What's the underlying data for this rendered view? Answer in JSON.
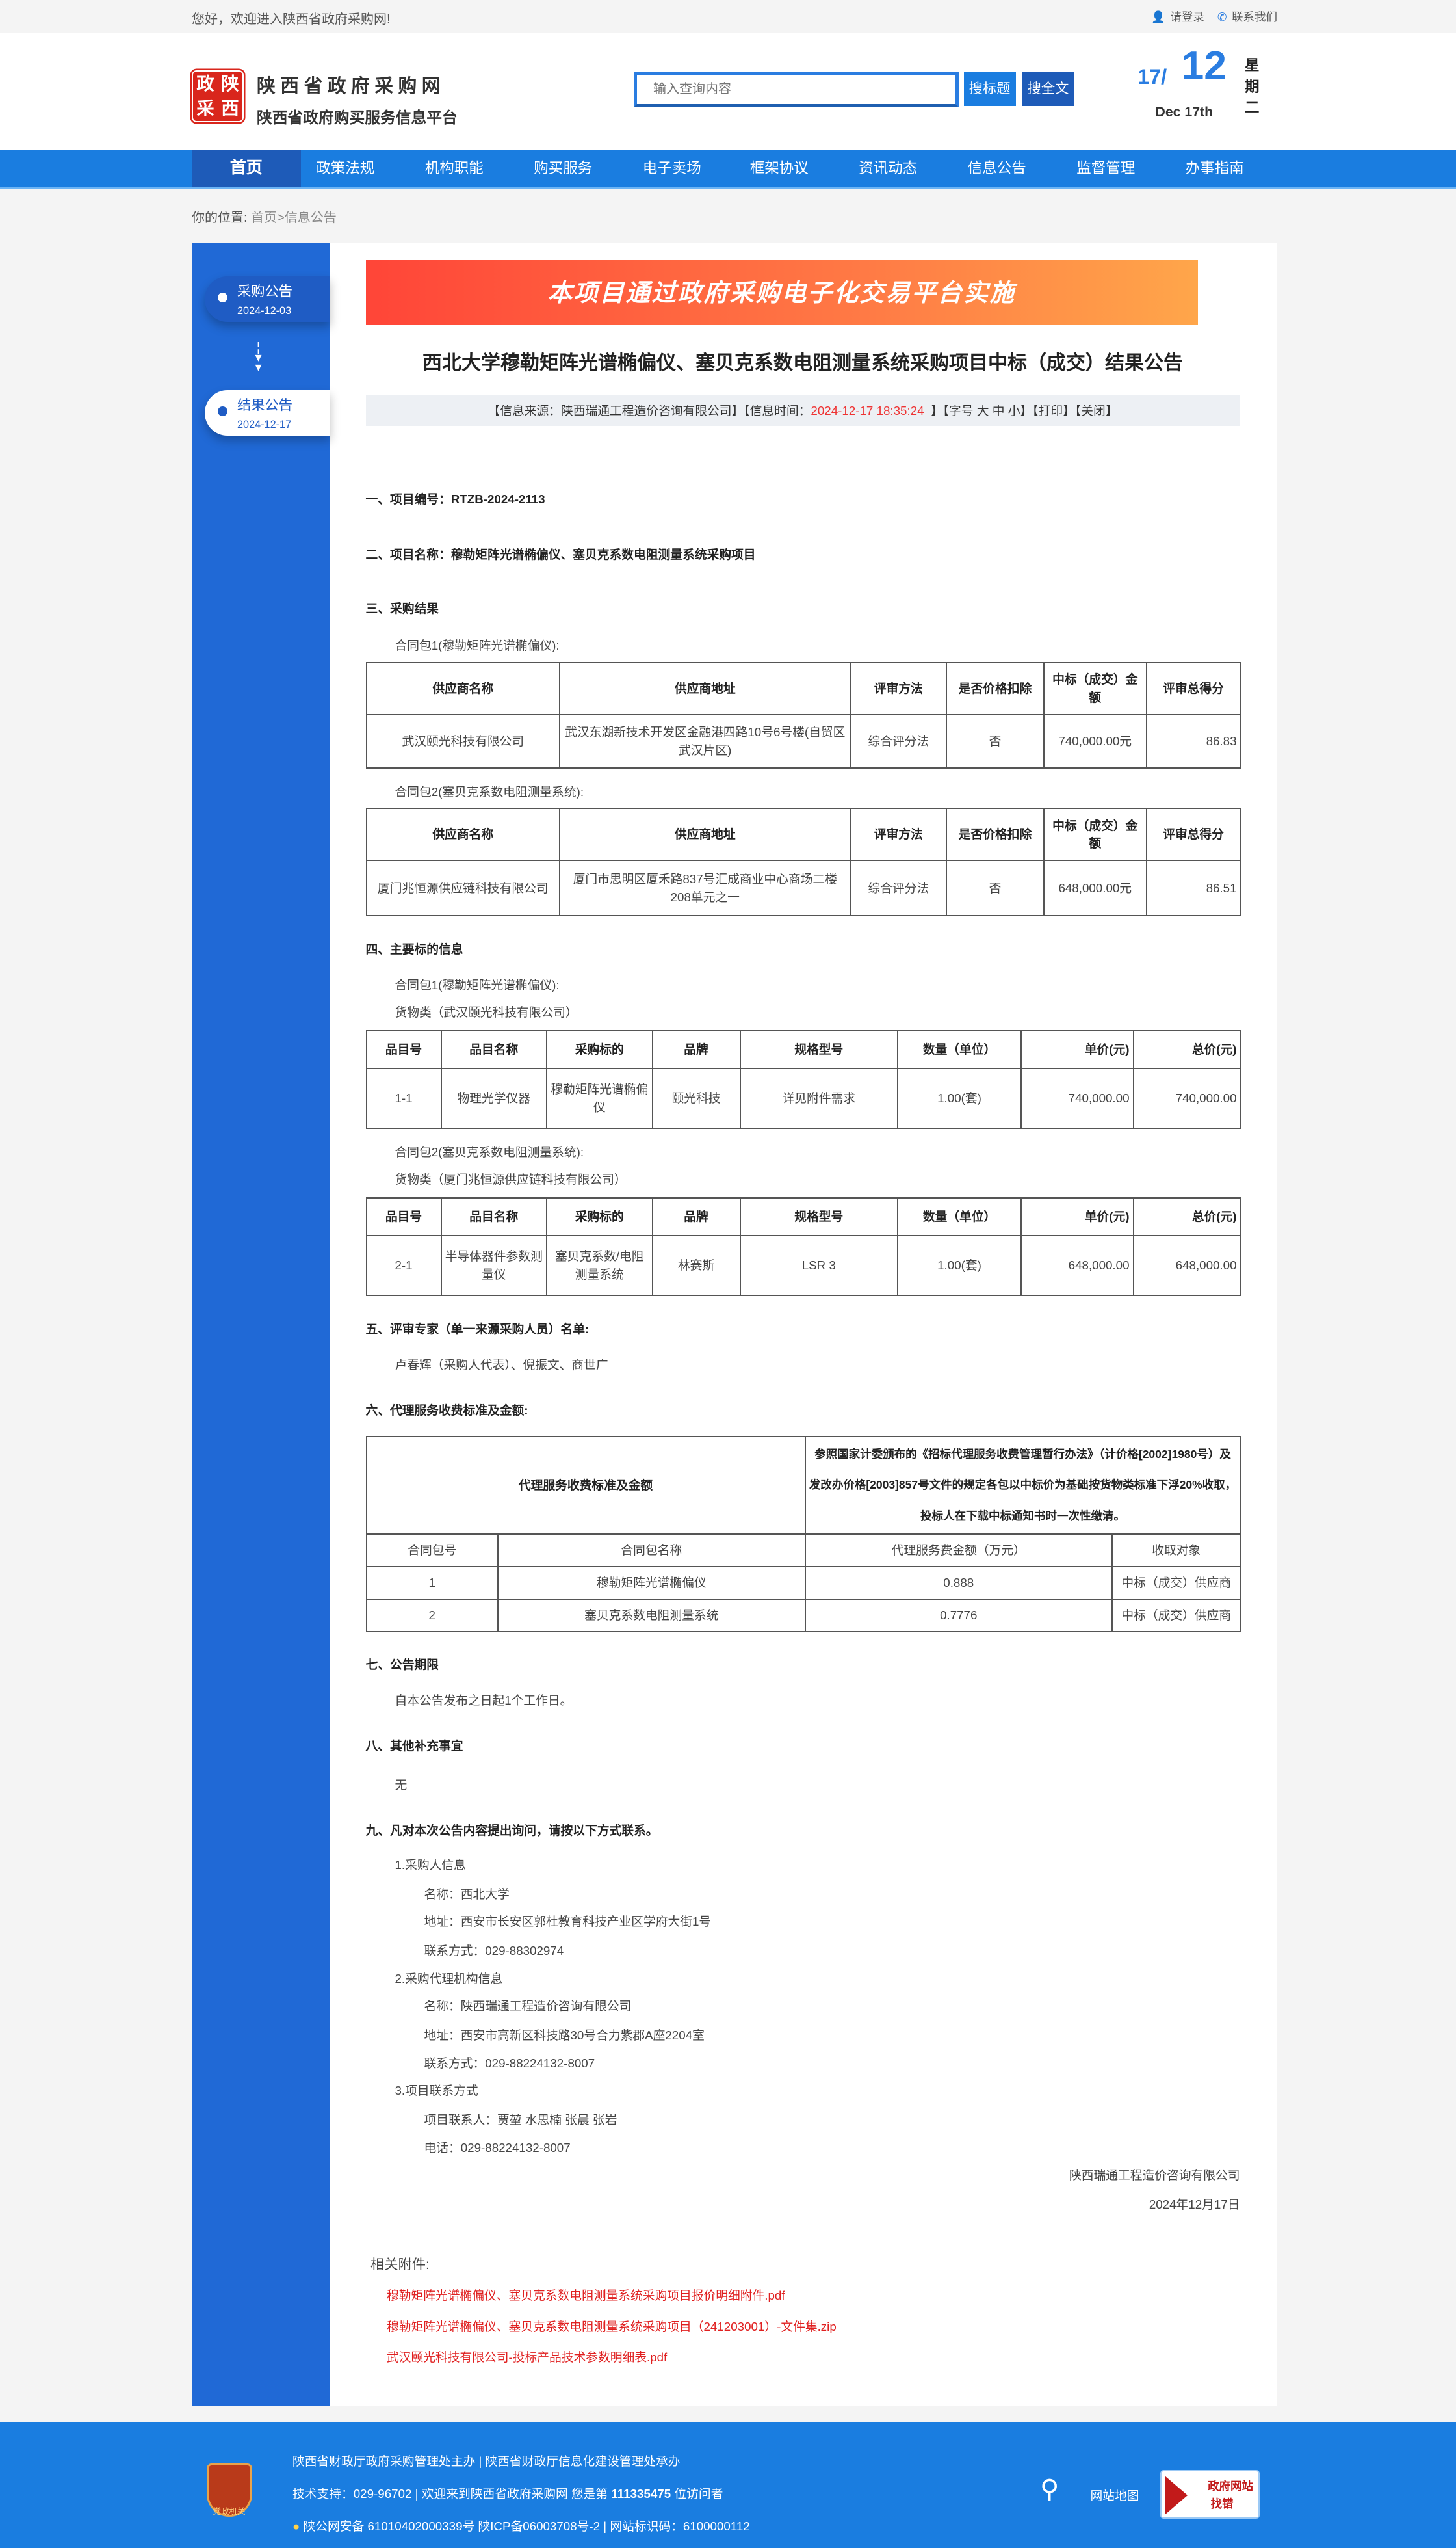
{
  "topbar": {
    "welcome": "您好，欢迎进入陕西省政府采购网!",
    "login": "请登录",
    "contact": "联系我们"
  },
  "header": {
    "logo_chars": [
      "政",
      "陕",
      "采",
      "西"
    ],
    "site_name": "陕西省政府采购网",
    "site_sub": "陕西省政府购买服务信息平台",
    "search_placeholder": "输入查询内容",
    "btn_title": "搜标题",
    "btn_full": "搜全文",
    "date_day": "17/",
    "date_month": "12",
    "date_en": "Dec 17th",
    "weekday": "星期二"
  },
  "nav": [
    "首页",
    "政策法规",
    "机构职能",
    "购买服务",
    "电子卖场",
    "框架协议",
    "资讯动态",
    "信息公告",
    "监督管理",
    "办事指南"
  ],
  "breadcrumb": {
    "label": "你的位置:",
    "home": "首页",
    "current": ">信息公告"
  },
  "sidebar": [
    {
      "label": "采购公告",
      "date": "2024-12-03"
    },
    {
      "label": "结果公告",
      "date": "2024-12-17"
    }
  ],
  "banner": "本项目通过政府采购电子化交易平台实施",
  "title": "西北大学穆勒矩阵光谱椭偏仪、塞贝克系数电阻测量系统采购项目中标（成交）结果公告",
  "info": {
    "source": "【信息来源：陕西瑞通工程造价咨询有限公司】【信息时间：",
    "time": "2024-12-17 18:35:24",
    "tail": "】【字号 大 中 小】【打印】【关闭】"
  },
  "s1": "一、项目编号：RTZB-2024-2113",
  "s2": "二、项目名称：穆勒矩阵光谱椭偏仪、塞贝克系数电阻测量系统采购项目",
  "s3": "三、采购结果",
  "pkg1": "合同包1(穆勒矩阵光谱椭偏仪):",
  "pkg2": "合同包2(塞贝克系数电阻测量系统):",
  "result_headers": [
    "供应商名称",
    "供应商地址",
    "评审方法",
    "是否价格扣除",
    "中标（成交）金额",
    "评审总得分"
  ],
  "result1": [
    "武汉颐光科技有限公司",
    "武汉东湖新技术开发区金融港四路10号6号楼(自贸区武汉片区)",
    "综合评分法",
    "否",
    "740,000.00元",
    "86.83"
  ],
  "result2": [
    "厦门兆恒源供应链科技有限公司",
    "厦门市思明区厦禾路837号汇成商业中心商场二楼208单元之一",
    "综合评分法",
    "否",
    "648,000.00元",
    "86.51"
  ],
  "s4": "四、主要标的信息",
  "goods1": "货物类（武汉颐光科技有限公司）",
  "goods2": "货物类（厦门兆恒源供应链科技有限公司）",
  "item_headers": [
    "品目号",
    "品目名称",
    "采购标的",
    "品牌",
    "规格型号",
    "数量（单位）",
    "单价(元)",
    "总价(元)"
  ],
  "item1": [
    "1-1",
    "物理光学仪器",
    "穆勒矩阵光谱椭偏仪",
    "颐光科技",
    "详见附件需求",
    "1.00(套)",
    "740,000.00",
    "740,000.00"
  ],
  "item2": [
    "2-1",
    "半导体器件参数测量仪",
    "塞贝克系数/电阻测量系统",
    "林赛斯",
    "LSR 3",
    "1.00(套)",
    "648,000.00",
    "648,000.00"
  ],
  "s5": "五、评审专家（单一来源采购人员）名单:",
  "experts": "卢春辉（采购人代表）、倪振文、商世广",
  "s6": "六、代理服务收费标准及金额:",
  "fee": {
    "label": "代理服务收费标准及金额",
    "desc": "参照国家计委颁布的《招标代理服务收费管理暂行办法》（计价格[2002]1980号）及发改办价格[2003]857号文件的规定各包以中标价为基础按货物类标准下浮20%收取，投标人在下载中标通知书时一次性缴清。",
    "headers": [
      "合同包号",
      "合同包名称",
      "代理服务费金额（万元）",
      "收取对象"
    ],
    "rows": [
      [
        "1",
        "穆勒矩阵光谱椭偏仪",
        "0.888",
        "中标（成交）供应商"
      ],
      [
        "2",
        "塞贝克系数电阻测量系统",
        "0.7776",
        "中标（成交）供应商"
      ]
    ]
  },
  "s7": "七、公告期限",
  "period": "自本公告发布之日起1个工作日。",
  "s8": "八、其他补充事宜",
  "other": "无",
  "s9": "九、凡对本次公告内容提出询问，请按以下方式联系。",
  "contacts": {
    "c1": "1.采购人信息",
    "c1n": "名称：西北大学",
    "c1a": "地址：西安市长安区郭杜教育科技产业区学府大街1号",
    "c1p": "联系方式：029-88302974",
    "c2": "2.采购代理机构信息",
    "c2n": "名称：陕西瑞通工程造价咨询有限公司",
    "c2a": "地址：西安市高新区科技路30号合力紫郡A座2204室",
    "c2p": "联系方式：029-88224132-8007",
    "c3": "3.项目联系方式",
    "c3n": "项目联系人：贾堃 水思楠 张晨 张岩",
    "c3p": "电话：029-88224132-8007"
  },
  "signature": "陕西瑞通工程造价咨询有限公司",
  "sign_date": "2024年12月17日",
  "attachments": {
    "label": "相关附件:",
    "files": [
      "穆勒矩阵光谱椭偏仪、塞贝克系数电阻测量系统采购项目报价明细附件.pdf",
      "穆勒矩阵光谱椭偏仪、塞贝克系数电阻测量系统采购项目（241203001）-文件集.zip",
      "武汉颐光科技有限公司-投标产品技术参数明细表.pdf"
    ]
  },
  "footer": {
    "line1": "陕西省财政厅政府采购管理处主办 | 陕西省财政厅信息化建设管理处承办",
    "line2a": "技术支持：029-96702 | 欢迎来到陕西省政府采购网 您是第 ",
    "visitors": "111335475",
    "line2b": " 位访问者",
    "line3": "陕公网安备 61010402000339号   陕ICP备06003708号-2  |  网站标识码：6100000112",
    "emblem": "党政机关",
    "sitemap": "网站地图",
    "badge1": "政府网站",
    "badge2": "找错"
  },
  "colors": {
    "primary": "#1a7de0",
    "nav_active": "#1e5bb8",
    "sidebar": "#2069d6",
    "link": "#e02020"
  }
}
